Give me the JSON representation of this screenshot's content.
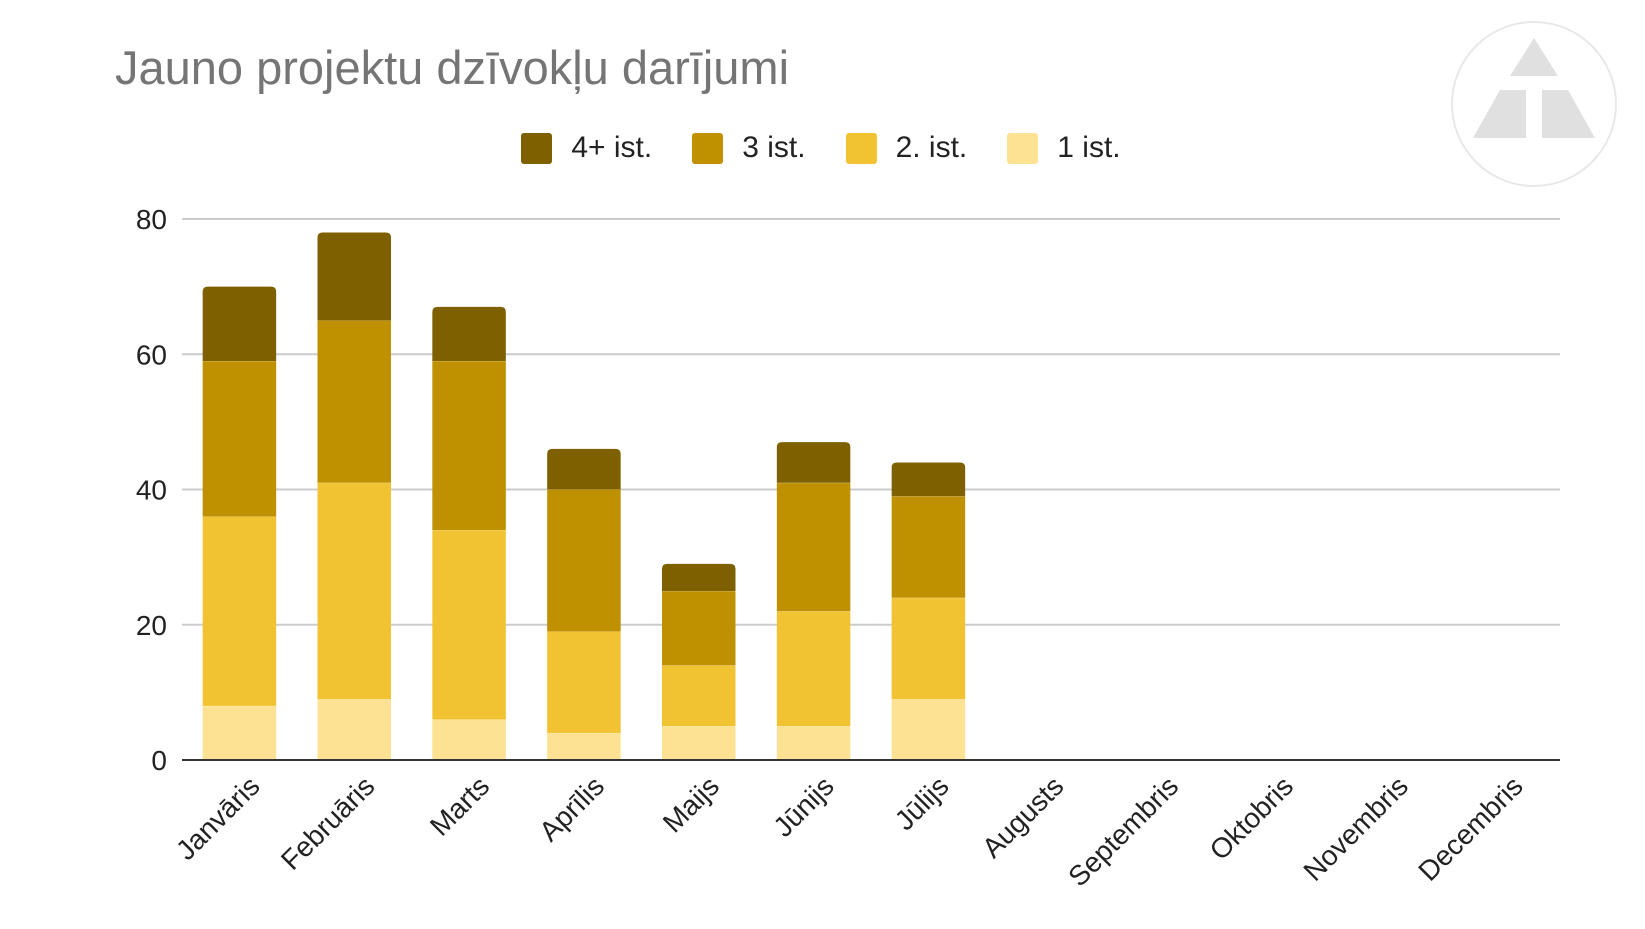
{
  "chart_data": {
    "type": "bar",
    "stacked": true,
    "title": "Jauno projektu dzīvokļu darījumi",
    "xlabel": "",
    "ylabel": "",
    "ylim": [
      0,
      80
    ],
    "yticks": [
      0,
      20,
      40,
      60,
      80
    ],
    "grid": true,
    "legend_position": "top",
    "categories": [
      "Janvāris",
      "Februāris",
      "Marts",
      "Aprīlis",
      "Maijs",
      "Jūnijs",
      "Jūlijs",
      "Augusts",
      "Septembris",
      "Oktobris",
      "Novembris",
      "Decembris"
    ],
    "series": [
      {
        "name": "1 ist.",
        "color": "#FDE293",
        "values": [
          8,
          9,
          6,
          4,
          5,
          5,
          9,
          0,
          0,
          0,
          0,
          0
        ]
      },
      {
        "name": "2. ist.",
        "color": "#F1C232",
        "values": [
          28,
          32,
          28,
          15,
          9,
          17,
          15,
          0,
          0,
          0,
          0,
          0
        ]
      },
      {
        "name": "3 ist.",
        "color": "#BF9000",
        "values": [
          23,
          24,
          25,
          21,
          11,
          19,
          15,
          0,
          0,
          0,
          0,
          0
        ]
      },
      {
        "name": "4+ ist.",
        "color": "#7F6000",
        "values": [
          11,
          13,
          8,
          6,
          4,
          6,
          5,
          0,
          0,
          0,
          0,
          0
        ]
      }
    ],
    "legend_order": [
      "4+ ist.",
      "3 ist.",
      "2. ist.",
      "1 ist."
    ]
  },
  "colors": {
    "title": "#757575",
    "text": "#222222",
    "grid": "#cccccc",
    "axis": "#333333",
    "logo": "#e0e0e0"
  },
  "logo": {
    "icon": "triangle-logo-icon"
  }
}
